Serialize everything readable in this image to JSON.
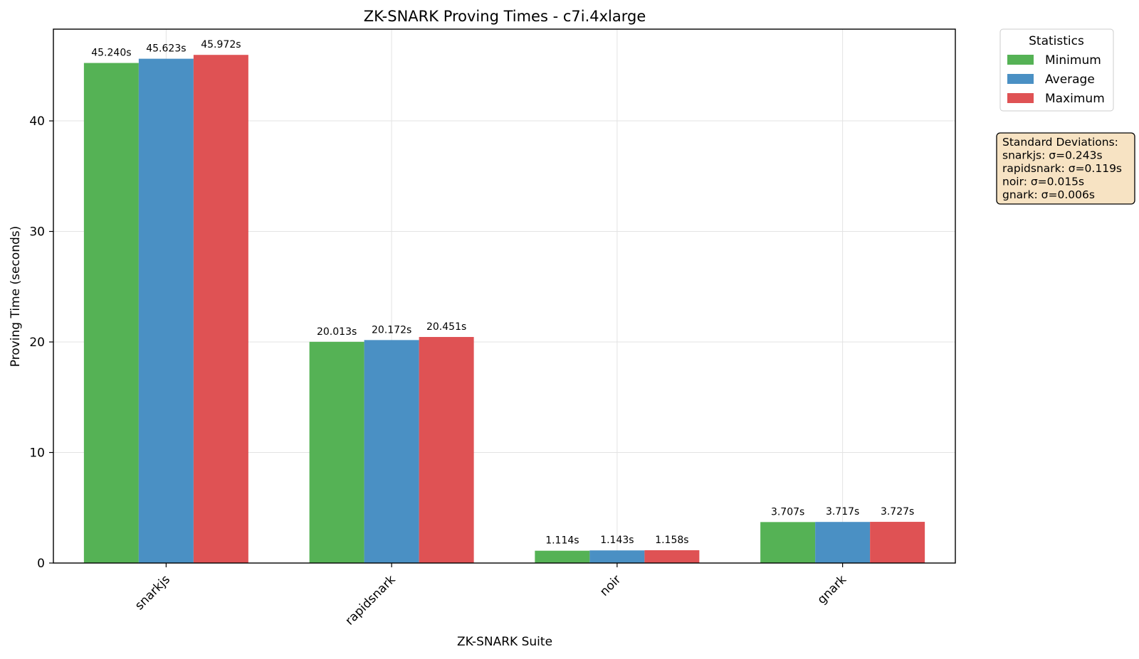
{
  "chart_data": {
    "type": "bar",
    "title": "ZK-SNARK Proving Times - c7i.4xlarge",
    "xlabel": "ZK-SNARK Suite",
    "ylabel": "Proving Time (seconds)",
    "ylim": [
      0,
      48.3
    ],
    "yticks": [
      0,
      10,
      20,
      30,
      40
    ],
    "grid": true,
    "categories": [
      "snarkjs",
      "rapidsnark",
      "noir",
      "gnark"
    ],
    "series": [
      {
        "name": "Minimum",
        "color": "#55b255",
        "values": [
          45.24,
          20.013,
          1.114,
          3.707
        ],
        "labels": [
          "45.240s",
          "20.013s",
          "1.114s",
          "3.707s"
        ]
      },
      {
        "name": "Average",
        "color": "#4a90c4",
        "values": [
          45.623,
          20.172,
          1.143,
          3.717
        ],
        "labels": [
          "45.623s",
          "20.172s",
          "1.143s",
          "3.717s"
        ]
      },
      {
        "name": "Maximum",
        "color": "#df5254",
        "values": [
          45.972,
          20.451,
          1.158,
          3.727
        ],
        "labels": [
          "45.972s",
          "20.451s",
          "1.158s",
          "3.727s"
        ]
      }
    ],
    "legend": {
      "title": "Statistics",
      "placement": "outside-top-right"
    },
    "annotation": {
      "lines": [
        "Standard Deviations:",
        "snarkjs: σ=0.243s",
        "rapidsnark: σ=0.119s",
        "noir: σ=0.015s",
        "gnark: σ=0.006s"
      ],
      "background": "#f7e3c3"
    }
  }
}
